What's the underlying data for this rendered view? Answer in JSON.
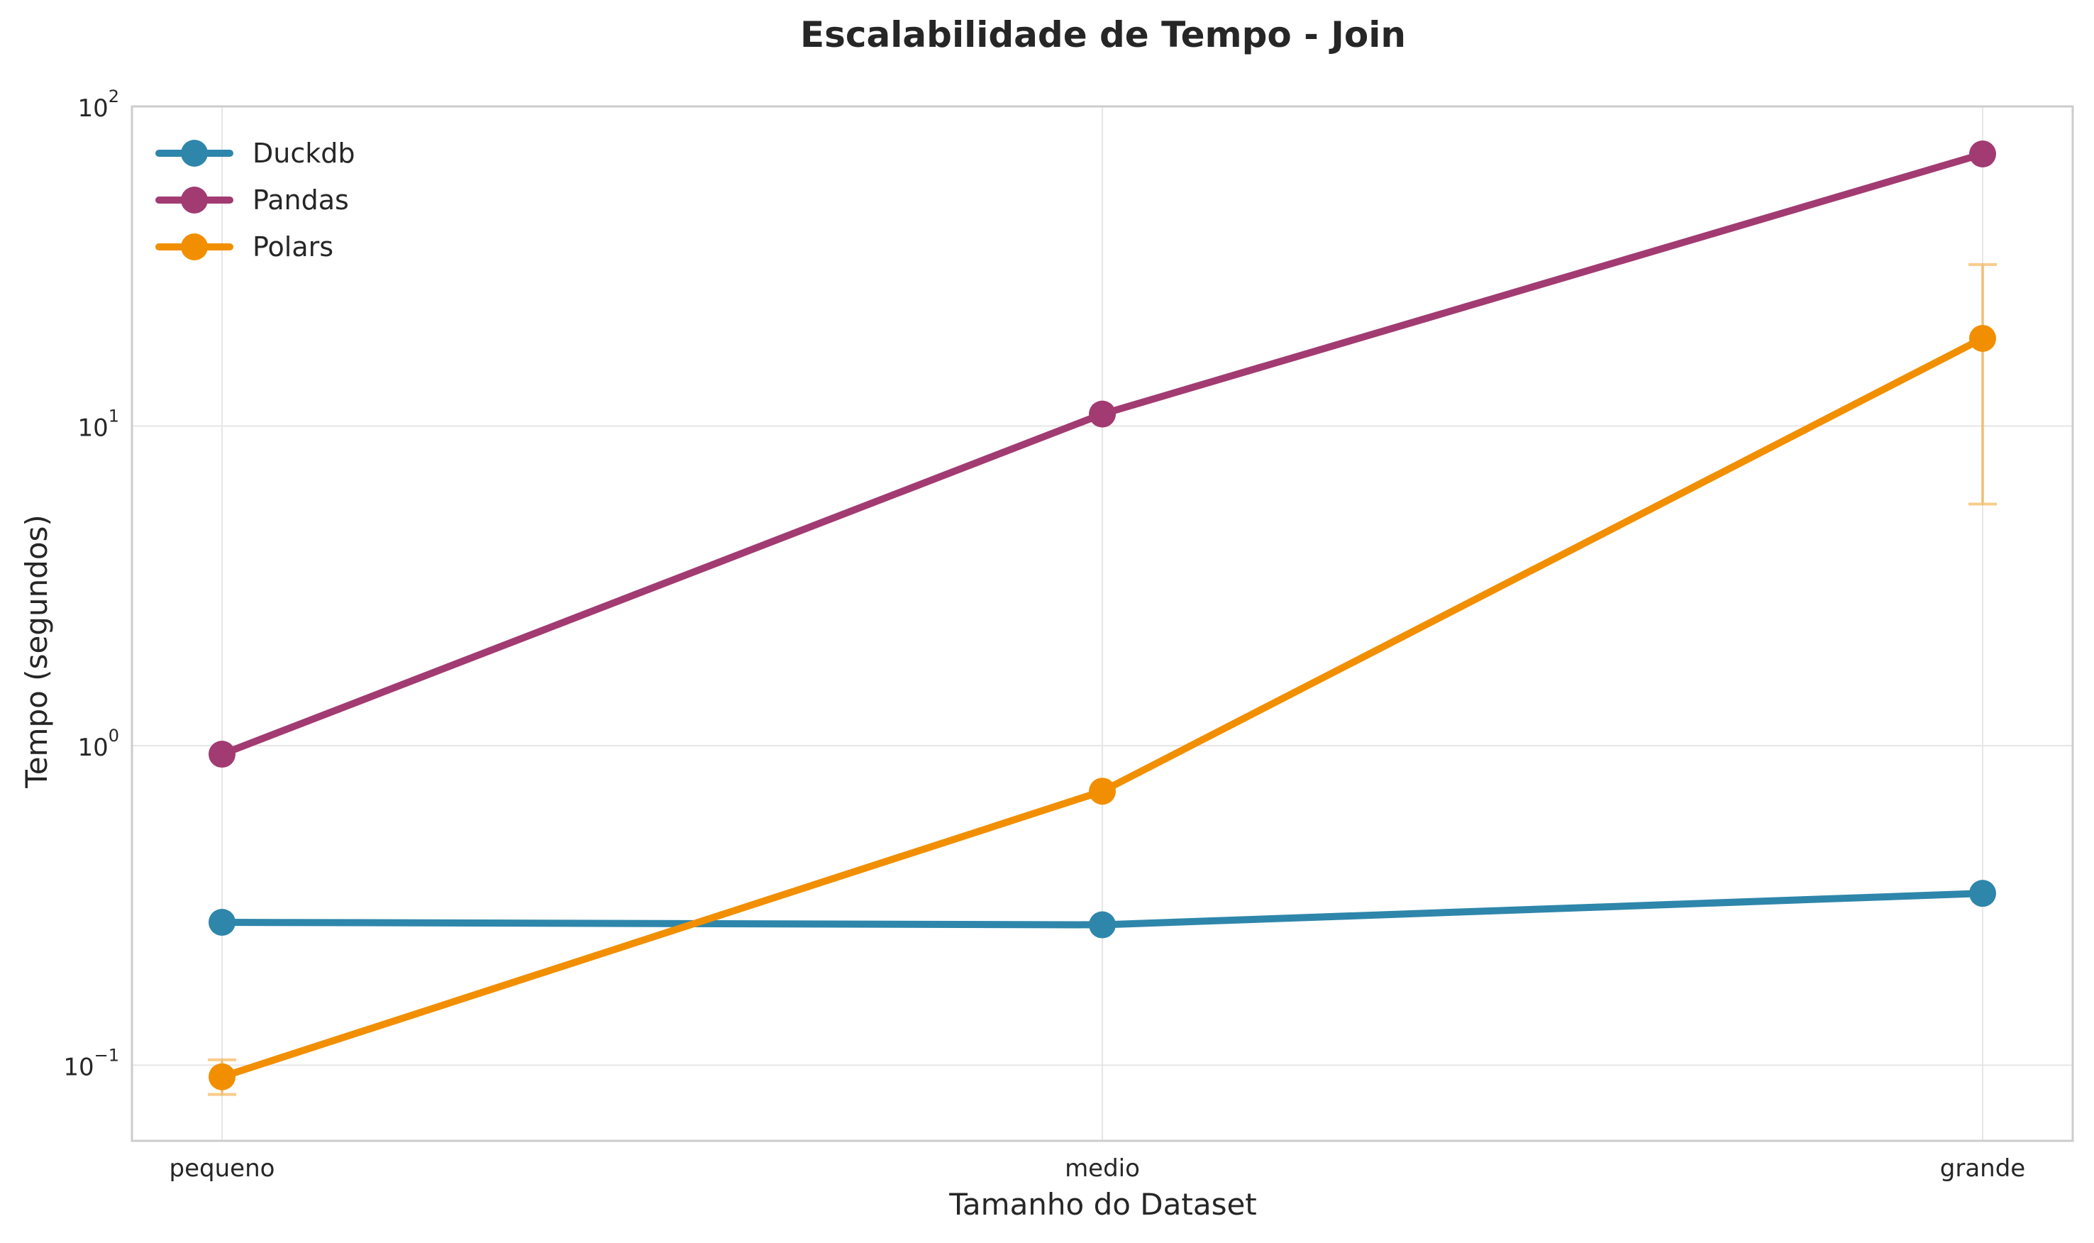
{
  "chart_data": {
    "type": "line",
    "title": "Escalabilidade de Tempo - Join",
    "xlabel": "Tamanho do Dataset",
    "ylabel": "Tempo (segundos)",
    "yscale": "log",
    "ylim": [
      0.058,
      100
    ],
    "yticks": [
      {
        "value": 0.1,
        "base": "10",
        "exp": "−1"
      },
      {
        "value": 1,
        "base": "10",
        "exp": "0"
      },
      {
        "value": 10,
        "base": "10",
        "exp": "1"
      },
      {
        "value": 100,
        "base": "10",
        "exp": "2"
      }
    ],
    "categories": [
      "pequeno",
      "medio",
      "grande"
    ],
    "grid": true,
    "legend_position": "top-left",
    "series": [
      {
        "name": "Duckdb",
        "color": "#2E86AB",
        "values": [
          0.28,
          0.275,
          0.345
        ],
        "error": null
      },
      {
        "name": "Pandas",
        "color": "#A23B72",
        "values": [
          0.94,
          10.9,
          71
        ],
        "error": null
      },
      {
        "name": "Polars",
        "color": "#F18F01",
        "values": [
          0.092,
          0.72,
          18.8
        ],
        "error_low": [
          0.081,
          null,
          5.7
        ],
        "error_high": [
          0.104,
          null,
          32
        ]
      }
    ]
  }
}
